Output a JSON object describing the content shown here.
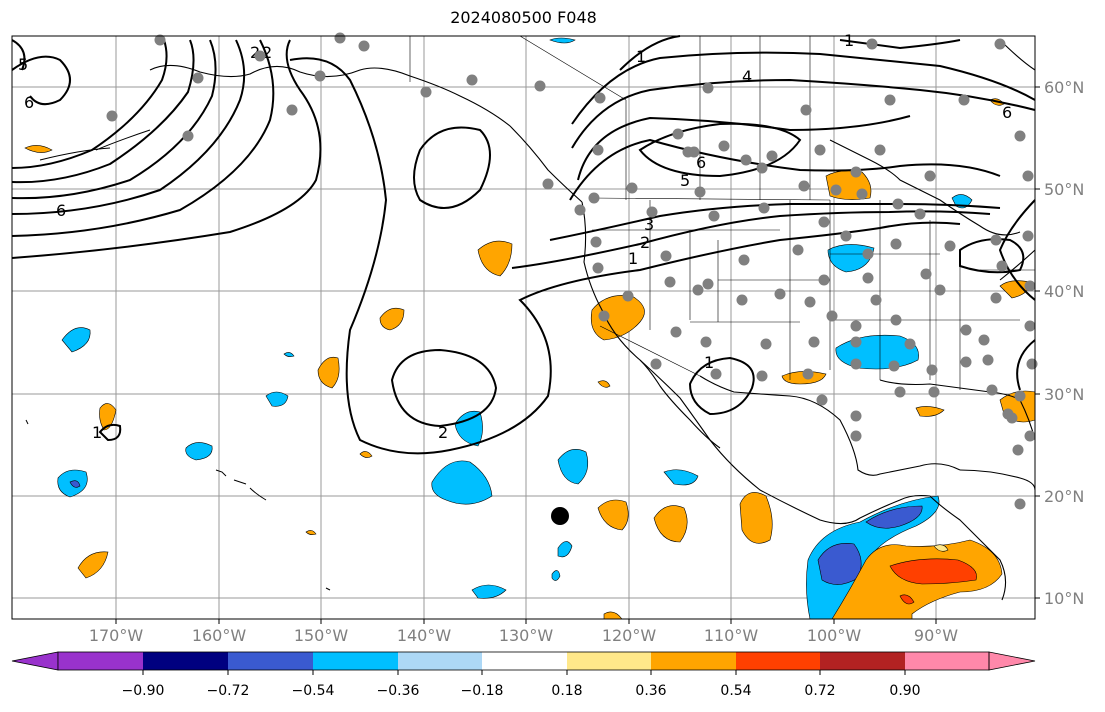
{
  "title": "2024080500 F048",
  "map": {
    "lat_labels": [
      "60°N",
      "50°N",
      "40°N",
      "30°N",
      "20°N",
      "10°N"
    ],
    "lon_labels": [
      "170°W",
      "160°W",
      "150°W",
      "140°W",
      "130°W",
      "120°W",
      "110°W",
      "100°W",
      "90°W"
    ],
    "contour_labels": [
      "5",
      "6",
      "2",
      "2",
      "6",
      "4",
      "1",
      "6",
      "5",
      "3",
      "2",
      "1",
      "2",
      "1",
      "1",
      "6",
      "1"
    ],
    "colors": {
      "land_lines": "#000000",
      "grid": "#999999",
      "station_dots": "#808080",
      "marker": "#000000"
    }
  },
  "colorbar": {
    "colors": [
      "#9932cc",
      "#000080",
      "#3a5ad0",
      "#00bfff",
      "#add8f6",
      "#ffffff",
      "#ffe88a",
      "#ffa500",
      "#ff4000",
      "#b22222",
      "#ff88aa"
    ],
    "tick_labels": [
      "−0.90",
      "−0.72",
      "−0.54",
      "−0.36",
      "−0.18",
      "0.18",
      "0.36",
      "0.54",
      "0.72",
      "0.90"
    ],
    "extend": "both"
  }
}
